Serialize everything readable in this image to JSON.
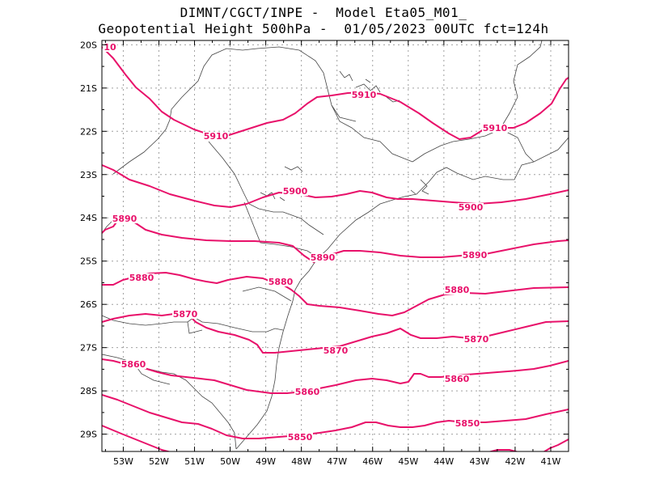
{
  "title_line1": "DIMNT/CGCT/INPE -  Model Eta05_M01_",
  "title_line2": "Geopotential Height 500hPa -  01/05/2023 00UTC fct=124h",
  "contour_color": "#e8116a",
  "axes": {
    "lat_labels": [
      "20S",
      "21S",
      "22S",
      "23S",
      "24S",
      "25S",
      "26S",
      "27S",
      "28S",
      "29S"
    ],
    "lon_labels": [
      "53W",
      "52W",
      "51W",
      "50W",
      "49W",
      "48W",
      "47W",
      "46W",
      "45W",
      "44W",
      "43W",
      "42W",
      "41W"
    ],
    "lat_range": [
      -29.4,
      -19.9
    ],
    "lon_range": [
      -53.6,
      -40.5
    ],
    "grid": true
  },
  "contours": [
    {
      "value": "5910",
      "labels": [
        "10",
        "5910",
        "5910",
        "5910"
      ]
    },
    {
      "value": "5900",
      "labels": [
        "5900",
        "5900"
      ]
    },
    {
      "value": "5890",
      "labels": [
        "5890",
        "5890",
        "5890"
      ]
    },
    {
      "value": "5880",
      "labels": [
        "5880",
        "5880",
        "5880"
      ]
    },
    {
      "value": "5870",
      "labels": [
        "5870",
        "5870",
        "5870"
      ]
    },
    {
      "value": "5860",
      "labels": [
        "5860",
        "5860",
        "5860"
      ]
    },
    {
      "value": "5850",
      "labels": [
        "5850",
        "5850"
      ]
    }
  ]
}
